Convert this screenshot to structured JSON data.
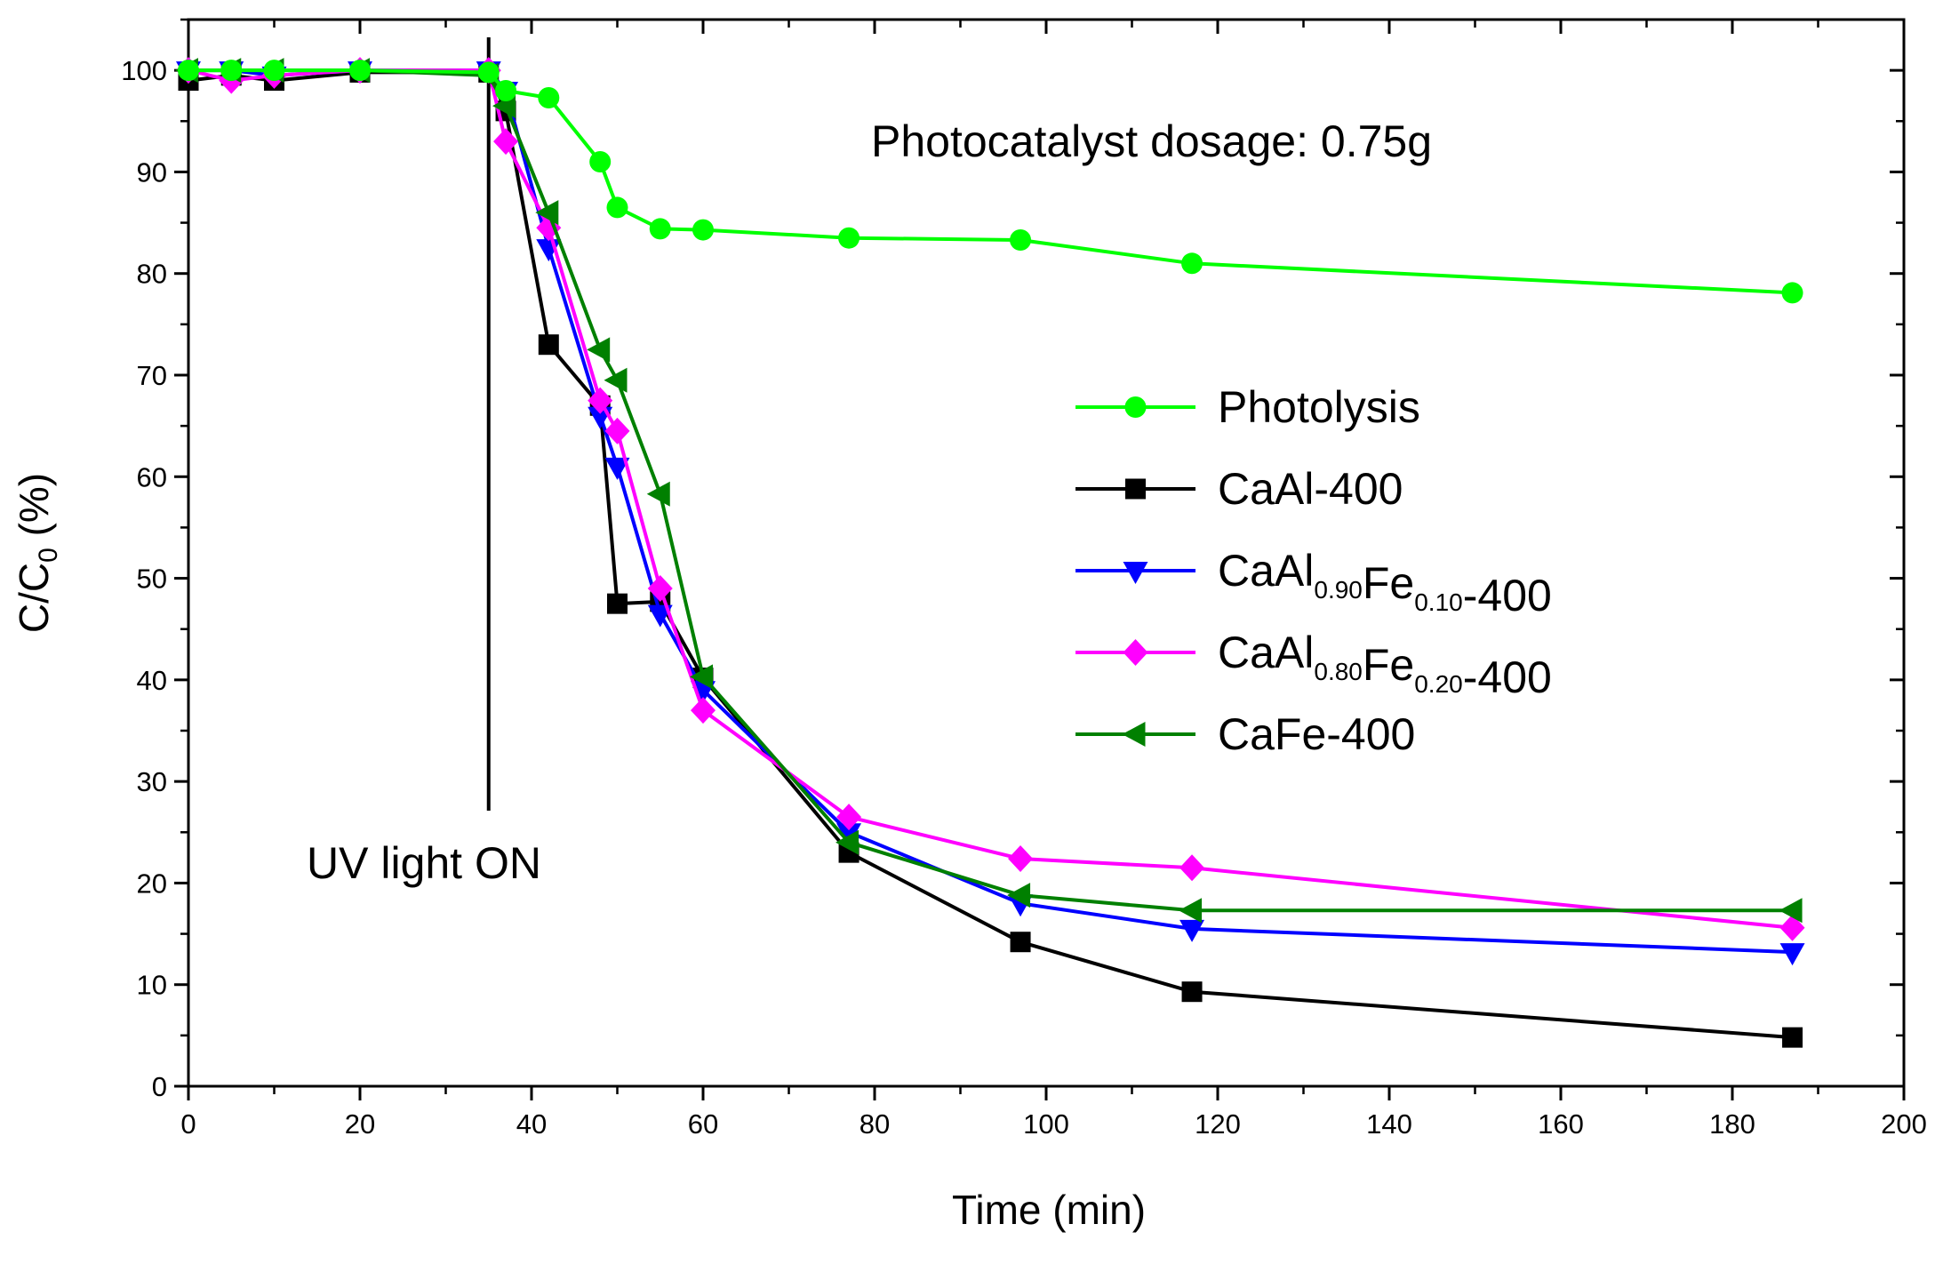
{
  "chart_data": {
    "type": "line",
    "title": "",
    "xlabel": "Time (min)",
    "ylabel": {
      "main": "C/C",
      "sub": "0",
      "suffix": " (%)"
    },
    "xlim": [
      0,
      200
    ],
    "ylim": [
      0,
      105
    ],
    "x_ticks": [
      0,
      20,
      40,
      60,
      80,
      100,
      120,
      140,
      160,
      180,
      200
    ],
    "y_ticks": [
      0,
      10,
      20,
      30,
      40,
      50,
      60,
      70,
      80,
      90,
      100
    ],
    "grid": false,
    "legend_position": "center-right",
    "annotations": [
      {
        "id": "dosage",
        "text": "Photocatalyst dosage: 0.75g"
      },
      {
        "id": "uv",
        "text": "UV light ON",
        "x": 35
      }
    ],
    "series": [
      {
        "name": "Photolysis",
        "label_parts": [
          {
            "t": "Photolysis"
          }
        ],
        "color": "#00ff00",
        "marker": "circle",
        "points": [
          [
            0,
            100
          ],
          [
            5,
            100
          ],
          [
            10,
            100
          ],
          [
            20,
            100
          ],
          [
            35,
            99.8
          ],
          [
            37,
            98
          ],
          [
            42,
            97.3
          ],
          [
            48,
            91
          ],
          [
            50,
            86.5
          ],
          [
            55,
            84.4
          ],
          [
            60,
            84.3
          ],
          [
            77,
            83.5
          ],
          [
            97,
            83.3
          ],
          [
            117,
            81
          ],
          [
            187,
            78.1
          ]
        ]
      },
      {
        "name": "CaAl-400",
        "label_parts": [
          {
            "t": "CaAl-400"
          }
        ],
        "color": "#000000",
        "marker": "square",
        "points": [
          [
            0,
            99
          ],
          [
            5,
            99.5
          ],
          [
            10,
            99
          ],
          [
            20,
            99.8
          ],
          [
            35,
            99.8
          ],
          [
            37,
            96
          ],
          [
            42,
            73
          ],
          [
            48,
            67
          ],
          [
            50,
            47.5
          ],
          [
            55,
            47.7
          ],
          [
            60,
            40.2
          ],
          [
            77,
            23
          ],
          [
            97,
            14.2
          ],
          [
            117,
            9.3
          ],
          [
            187,
            4.8
          ]
        ]
      },
      {
        "name": "CaAl0.90Fe0.10-400",
        "label_parts": [
          {
            "t": "CaAl"
          },
          {
            "t": "0.90",
            "sub": true
          },
          {
            "t": "Fe"
          },
          {
            "t": "0.10",
            "sub": true
          },
          {
            "t": "-400"
          }
        ],
        "color": "#0000ff",
        "marker": "triangle-down",
        "points": [
          [
            0,
            100
          ],
          [
            5,
            100
          ],
          [
            10,
            99.5
          ],
          [
            20,
            100
          ],
          [
            35,
            100
          ],
          [
            37,
            98
          ],
          [
            42,
            82.5
          ],
          [
            48,
            66
          ],
          [
            50,
            61
          ],
          [
            55,
            46.5
          ],
          [
            60,
            39
          ],
          [
            77,
            25
          ],
          [
            97,
            18
          ],
          [
            117,
            15.5
          ],
          [
            187,
            13.2
          ]
        ]
      },
      {
        "name": "CaAl0.80Fe0.20-400",
        "label_parts": [
          {
            "t": "CaAl"
          },
          {
            "t": "0.80",
            "sub": true
          },
          {
            "t": "Fe"
          },
          {
            "t": "0.20",
            "sub": true
          },
          {
            "t": "-400"
          }
        ],
        "color": "#ff00ff",
        "marker": "diamond",
        "points": [
          [
            0,
            100
          ],
          [
            5,
            99
          ],
          [
            10,
            99.5
          ],
          [
            20,
            100
          ],
          [
            35,
            100
          ],
          [
            37,
            93
          ],
          [
            42,
            84.5
          ],
          [
            48,
            67.5
          ],
          [
            50,
            64.5
          ],
          [
            55,
            49
          ],
          [
            60,
            37
          ],
          [
            77,
            26.5
          ],
          [
            97,
            22.4
          ],
          [
            117,
            21.5
          ],
          [
            187,
            15.6
          ]
        ]
      },
      {
        "name": "CaFe-400",
        "label_parts": [
          {
            "t": "CaFe-400"
          }
        ],
        "color": "#008000",
        "marker": "triangle-left",
        "points": [
          [
            0,
            100
          ],
          [
            5,
            100
          ],
          [
            10,
            100
          ],
          [
            20,
            100
          ],
          [
            35,
            99.5
          ],
          [
            37,
            96.5
          ],
          [
            42,
            86
          ],
          [
            48,
            72.5
          ],
          [
            50,
            69.5
          ],
          [
            55,
            58.3
          ],
          [
            60,
            40.3
          ],
          [
            77,
            24
          ],
          [
            97,
            18.8
          ],
          [
            117,
            17.3
          ],
          [
            187,
            17.3
          ]
        ]
      }
    ]
  }
}
